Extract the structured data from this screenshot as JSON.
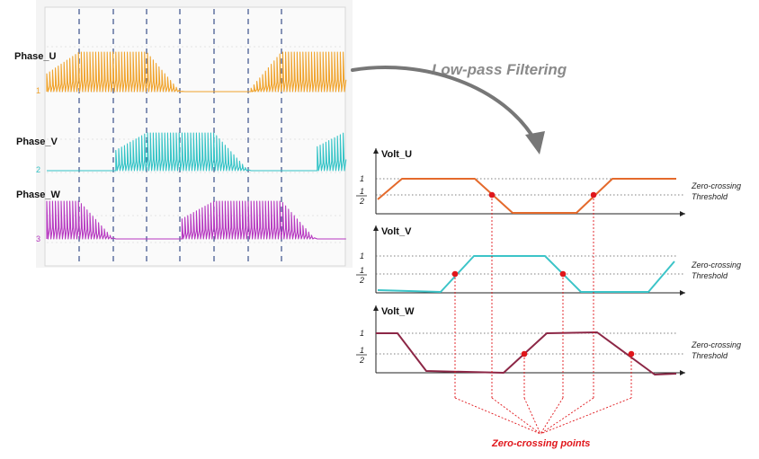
{
  "title": "Low-pass Filtering",
  "scope": {
    "channels": [
      {
        "label": "Phase_U",
        "marker": "1",
        "color": "#f0a32c"
      },
      {
        "label": "Phase_V",
        "marker": "2",
        "color": "#33c3c6"
      },
      {
        "label": "Phase_W",
        "marker": "3",
        "color": "#b637c0"
      }
    ]
  },
  "filtered": {
    "plots": [
      {
        "label": "Volt_U",
        "color": "#e46a2c",
        "tick_high": "1",
        "tick_mid_num": "1",
        "tick_mid_den": "2",
        "threshold_line1": "Zero-crossing",
        "threshold_line2": "Threshold"
      },
      {
        "label": "Volt_V",
        "color": "#3cc4c8",
        "tick_high": "1",
        "tick_mid_num": "1",
        "tick_mid_den": "2",
        "threshold_line1": "Zero-crossing",
        "threshold_line2": "Threshold"
      },
      {
        "label": "Volt_W",
        "color": "#8c2746",
        "tick_high": "1",
        "tick_mid_num": "1",
        "tick_mid_den": "2",
        "threshold_line1": "Zero-crossing",
        "threshold_line2": "Threshold"
      }
    ],
    "annotation": "Zero-crossing points"
  },
  "colors": {
    "point": "#e0161b",
    "guide": "#e0161b",
    "arrow": "#777777"
  }
}
